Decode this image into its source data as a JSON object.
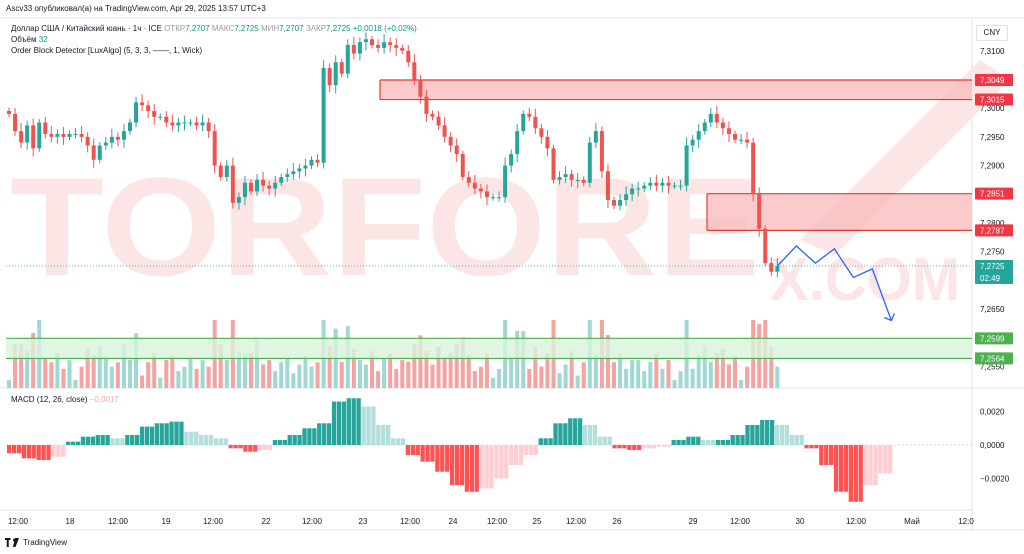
{
  "header": {
    "title": "Ascv33 опубликовал(а) на TradingView.com, Apr 29, 2025 13:57 UTC+3"
  },
  "legend": {
    "symbol": "Доллар США / Китайский юань · 1ч · ICE",
    "open_label": "ОТКР",
    "open": "7,2707",
    "high_label": "МАКС",
    "high": "7,2725",
    "low_label": "МИН",
    "low": "7,2707",
    "close_label": "ЗАКР",
    "close": "7,2725",
    "change": "+0,0018 (+0,02%)",
    "volume_label": "Объём",
    "volume": "32",
    "indicator": "Order Block Detector [LuxAlgo] (5, 3, 3, ——, 1, Wick)",
    "macd_label": "MACD (12, 26, close)",
    "macd_value": "−0,0017"
  },
  "currency": "CNY",
  "watermark": "TORFOREX.COM",
  "footer": {
    "brand": "TradingView"
  },
  "colors": {
    "up": "#26a69a",
    "down": "#ef5350",
    "ob_fill": "#f9b9b9",
    "ob_line": "#e53935",
    "support_fill": "#d9f2dc",
    "support_line": "#4caf50",
    "forecast": "#2962ff",
    "macd_up": "#26a69a",
    "macd_down": "#ff5252"
  },
  "chart_data": {
    "type": "candlestick",
    "price_axis": {
      "ticks": [
        "7,3100",
        "7,3000",
        "7,2950",
        "7,2900",
        "7,2800",
        "7,2750",
        "7,2650",
        "7,2600",
        "7,2550"
      ]
    },
    "macd_axis": {
      "ticks": [
        "0,0020",
        "0,0000",
        "−0,0020"
      ]
    },
    "time_axis": [
      "12:00",
      "18",
      "12:00",
      "19",
      "12:00",
      "22",
      "12:00",
      "23",
      "12:00",
      "24",
      "12:00",
      "25",
      "12:00",
      "26",
      "29",
      "12:00",
      "30",
      "12:00",
      "Май",
      "12:0"
    ],
    "price_labels": [
      {
        "text": "7,3049",
        "kind": "resistance"
      },
      {
        "text": "7,3015",
        "kind": "resistance"
      },
      {
        "text": "7,2851",
        "kind": "resistance"
      },
      {
        "text": "7,2787",
        "kind": "resistance"
      },
      {
        "text": "7,2725",
        "kind": "current"
      },
      {
        "text": "02:49",
        "kind": "countdown"
      },
      {
        "text": "7,2599",
        "kind": "support"
      },
      {
        "text": "7,2564",
        "kind": "support"
      }
    ],
    "zones": [
      {
        "kind": "bearish_order_block",
        "from": 7.3015,
        "to": 7.3049
      },
      {
        "kind": "bearish_order_block",
        "from": 7.2787,
        "to": 7.2851
      },
      {
        "kind": "bullish_order_block",
        "from": 7.2564,
        "to": 7.2599
      }
    ],
    "forecast_path": [
      7.2725,
      7.276,
      7.273,
      7.2755,
      7.2705,
      7.272,
      7.263
    ],
    "candles_close": [
      7.299,
      7.296,
      7.294,
      7.297,
      7.293,
      7.2975,
      7.2955,
      7.295,
      7.2955,
      7.295,
      7.2955,
      7.2955,
      7.295,
      7.2935,
      7.291,
      7.2935,
      7.294,
      7.295,
      7.2945,
      7.296,
      7.2975,
      7.301,
      7.3005,
      7.2995,
      7.2985,
      7.2985,
      7.2975,
      7.297,
      7.2975,
      7.2975,
      7.2975,
      7.297,
      7.2975,
      7.296,
      7.29,
      7.288,
      7.29,
      7.2835,
      7.2845,
      7.287,
      7.2855,
      7.2875,
      7.2865,
      7.286,
      7.287,
      7.288,
      7.2885,
      7.289,
      7.2895,
      7.29,
      7.291,
      7.2905,
      7.307,
      7.304,
      7.308,
      7.306,
      7.311,
      7.3095,
      7.3115,
      7.312,
      7.311,
      7.3105,
      7.3115,
      7.311,
      7.3105,
      7.31,
      7.308,
      7.305,
      7.302,
      7.299,
      7.2985,
      7.297,
      7.295,
      7.2935,
      7.292,
      7.288,
      7.287,
      7.286,
      7.2855,
      7.2845,
      7.2845,
      7.2845,
      7.29,
      7.292,
      7.296,
      7.299,
      7.2985,
      7.2965,
      7.295,
      7.293,
      7.2875,
      7.288,
      7.2885,
      7.2875,
      7.2875,
      7.287,
      7.294,
      7.296,
      7.289,
      7.284,
      7.283,
      7.284,
      7.285,
      7.286,
      7.286,
      7.2865,
      7.287,
      7.2865,
      7.287,
      7.2865,
      7.2865,
      7.2865,
      7.2935,
      7.2945,
      7.296,
      7.2975,
      7.299,
      7.2975,
      7.2965,
      7.2955,
      7.2945,
      7.2945,
      7.294,
      7.285,
      7.279,
      7.273,
      7.2715,
      7.2725
    ],
    "macd_histogram": [
      -0.0005,
      -0.0008,
      -0.0009,
      -0.0007,
      0.0002,
      0.0005,
      0.0006,
      0.0004,
      0.0006,
      0.0011,
      0.0013,
      0.0014,
      0.0008,
      0.0006,
      0.0004,
      -0.0002,
      -0.0004,
      -0.0003,
      0.0003,
      0.0006,
      0.001,
      0.0013,
      0.0026,
      0.0028,
      0.0023,
      0.0012,
      0.0004,
      -0.0006,
      -0.001,
      -0.0016,
      -0.0024,
      -0.0028,
      -0.0026,
      -0.002,
      -0.0012,
      -0.0006,
      0.0004,
      0.0013,
      0.0016,
      0.0012,
      0.0005,
      -0.0002,
      -0.0003,
      -0.0002,
      -0.0001,
      0.0003,
      0.0005,
      0.0003,
      0.0003,
      0.0006,
      0.0012,
      0.0015,
      0.0012,
      0.0006,
      -0.0002,
      -0.0012,
      -0.0028,
      -0.0034,
      -0.0024,
      -0.0017
    ]
  }
}
